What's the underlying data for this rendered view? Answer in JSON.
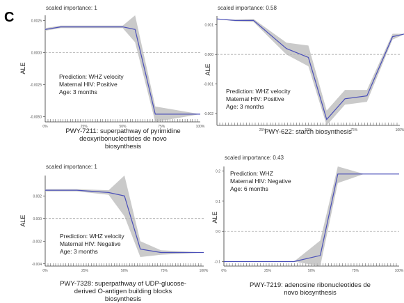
{
  "panel_label": "C",
  "chart_data": [
    {
      "type": "line",
      "scaled_importance": "scaled importance: 1",
      "ylabel": "ALE",
      "title_lines": [
        "PWY-7211: superpathway of pyrimidine",
        "deoxyribonucleotides de novo",
        "biosynthesis"
      ],
      "annotation": [
        "Prediction: WHZ velocity",
        "Maternal HIV: Positive",
        "Age: 3 months"
      ],
      "ylim": [
        -0.0054,
        0.0029
      ],
      "yticks": [
        0.0025,
        0.0,
        -0.0025,
        -0.005
      ],
      "ytick_labels": [
        "0.0025",
        "0.0000",
        "-0.0025",
        "-0.0050"
      ],
      "xticks": [
        0,
        25,
        50,
        75,
        100
      ],
      "xtick_labels": [
        "0%",
        "25%",
        "50%",
        "75%",
        "100%"
      ],
      "dashed_zero": 0.0,
      "x": [
        0,
        10,
        50,
        58,
        71,
        100
      ],
      "y": [
        0.0018,
        0.002,
        0.002,
        0.0018,
        -0.0048,
        -0.0048
      ],
      "upper": [
        0.0019,
        0.0021,
        0.0021,
        0.0029,
        -0.0042,
        -0.0048
      ],
      "lower": [
        0.0017,
        0.0019,
        0.0019,
        0.0008,
        -0.0054,
        -0.0048
      ]
    },
    {
      "type": "line",
      "scaled_importance": "scaled importance: 0.58",
      "ylabel": "ALE",
      "title_lines": [
        "PWY-622: starch biosynthesis"
      ],
      "annotation": [
        "Prediction: WHZ velocity",
        "Maternal HIV: Positive",
        "Age: 3 months"
      ],
      "ylim": [
        -0.0024,
        0.0013
      ],
      "yticks": [
        0.001,
        0.0,
        -0.001,
        -0.002
      ],
      "ytick_labels": [
        "0.001",
        "0.000",
        "-0.001",
        "-0.002"
      ],
      "xticks": [
        25,
        50,
        75,
        100
      ],
      "xtick_labels": [
        "25%",
        "50%",
        "75%",
        "100%"
      ],
      "dashed_zero": 0.0,
      "x": [
        0,
        10,
        20,
        38,
        50,
        60,
        70,
        82,
        96,
        103
      ],
      "y": [
        0.0012,
        0.00115,
        0.00115,
        0.0002,
        -0.0001,
        -0.0022,
        -0.0015,
        -0.0014,
        0.0006,
        0.0007
      ],
      "upper": [
        0.0012,
        0.00118,
        0.0012,
        0.0004,
        0.0003,
        -0.0019,
        -0.0012,
        -0.0012,
        0.0007,
        0.0007
      ],
      "lower": [
        0.0012,
        0.00112,
        0.0011,
        0.0,
        -0.0004,
        -0.0024,
        -0.0017,
        -0.0016,
        0.0005,
        0.0007
      ]
    },
    {
      "type": "line",
      "scaled_importance": "scaled importance: 1",
      "ylabel": "ALE",
      "title_lines": [
        "PWY-7328: superpathway of UDP-glucose-",
        "derived O-antigen building blocks",
        "biosynthesis"
      ],
      "annotation": [
        "Prediction: WHZ velocity",
        "Maternal HIV: Negative",
        "Age: 3 months"
      ],
      "ylim": [
        -0.0042,
        0.0038
      ],
      "yticks": [
        0.002,
        0.0,
        -0.002,
        -0.004
      ],
      "ytick_labels": [
        "0.002",
        "0.000",
        "-0.002",
        "-0.004"
      ],
      "xticks": [
        0,
        25,
        50,
        75,
        100
      ],
      "xtick_labels": [
        "0%",
        "25%",
        "50%",
        "75%",
        "100%"
      ],
      "dashed_zero": 0.0,
      "x": [
        0,
        20,
        40,
        50,
        60,
        73,
        100
      ],
      "y": [
        0.0025,
        0.0025,
        0.0023,
        0.002,
        -0.0027,
        -0.003,
        -0.003
      ],
      "upper": [
        0.0026,
        0.0026,
        0.0025,
        0.0038,
        -0.002,
        -0.0028,
        -0.003
      ],
      "lower": [
        0.0024,
        0.0024,
        0.0021,
        0.0002,
        -0.0034,
        -0.0032,
        -0.003
      ]
    },
    {
      "type": "line",
      "scaled_importance": "scaled importance: 0.43",
      "ylabel": "ALE",
      "title_lines": [
        "PWY-7219: adenosine ribonucleotides de",
        "novo biosynthesis"
      ],
      "annotation": [
        "Prediction: WHZ",
        "Maternal HIV: Negative",
        "Age: 6 months"
      ],
      "ylim": [
        -0.115,
        0.215
      ],
      "yticks": [
        0.2,
        0.1,
        0.0,
        -0.1
      ],
      "ytick_labels": [
        "0.2",
        "0.1",
        "0.0",
        "-0.1"
      ],
      "xticks": [
        0,
        25,
        50,
        75,
        100
      ],
      "xtick_labels": [
        "0%",
        "25%",
        "50%",
        "75%",
        "100%"
      ],
      "dashed_zero": 0.0,
      "x": [
        0,
        40,
        55,
        65,
        80,
        100
      ],
      "y": [
        -0.1,
        -0.1,
        -0.08,
        0.19,
        0.19,
        0.19
      ],
      "upper": [
        -0.1,
        -0.1,
        -0.03,
        0.215,
        0.19,
        0.19
      ],
      "lower": [
        -0.1,
        -0.1,
        -0.115,
        0.16,
        0.19,
        0.19
      ]
    }
  ]
}
